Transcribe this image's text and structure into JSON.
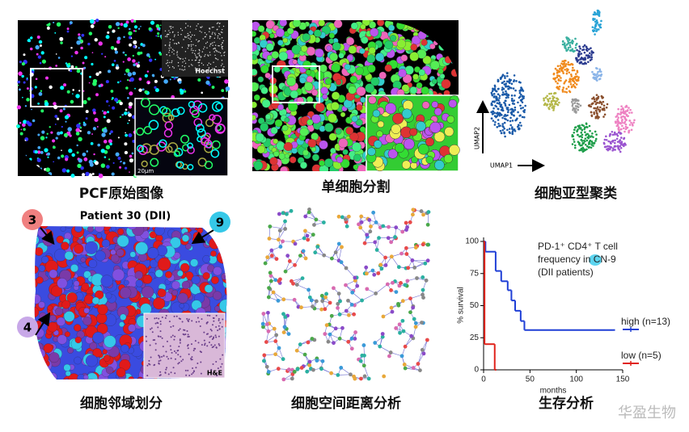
{
  "captions": [
    "PCF原始图像",
    "单细胞分割",
    "细胞亚型聚类",
    "细胞邻域划分",
    "细胞空间距离分析",
    "生存分析"
  ],
  "raw_image": {
    "channel_label": "Hoechst",
    "scale_bar": "20μm"
  },
  "umap": {
    "x_label": "UMAP1",
    "y_label": "UMAP2"
  },
  "neighborhood": {
    "title": "Patient 30 (DII)",
    "markers": [
      "3",
      "9",
      "4"
    ],
    "inset_label": "H&E"
  },
  "watermark": "华盈生物",
  "chart_data": {
    "type": "step",
    "x_label": "months",
    "y_label": "% survival",
    "annotation": [
      "PD-1⁺ CD4⁺ T cell",
      "frequency in CN-9",
      "(DII patients)"
    ],
    "xlim": [
      0,
      150
    ],
    "ylim": [
      0,
      100
    ],
    "xticks": [
      0,
      50,
      100,
      150
    ],
    "yticks": [
      0,
      25,
      50,
      75,
      100
    ],
    "series": [
      {
        "name": "high (n=13)",
        "color": "#1f3fd6",
        "x": [
          0,
          2,
          13,
          19,
          26,
          30,
          34,
          40,
          44,
          140
        ],
        "values": [
          100,
          92,
          77,
          69,
          62,
          54,
          46,
          38,
          31,
          31
        ]
      },
      {
        "name": "low (n=5)",
        "color": "#e0231b",
        "x": [
          0,
          1,
          12
        ],
        "values": [
          100,
          20,
          0
        ]
      }
    ]
  }
}
